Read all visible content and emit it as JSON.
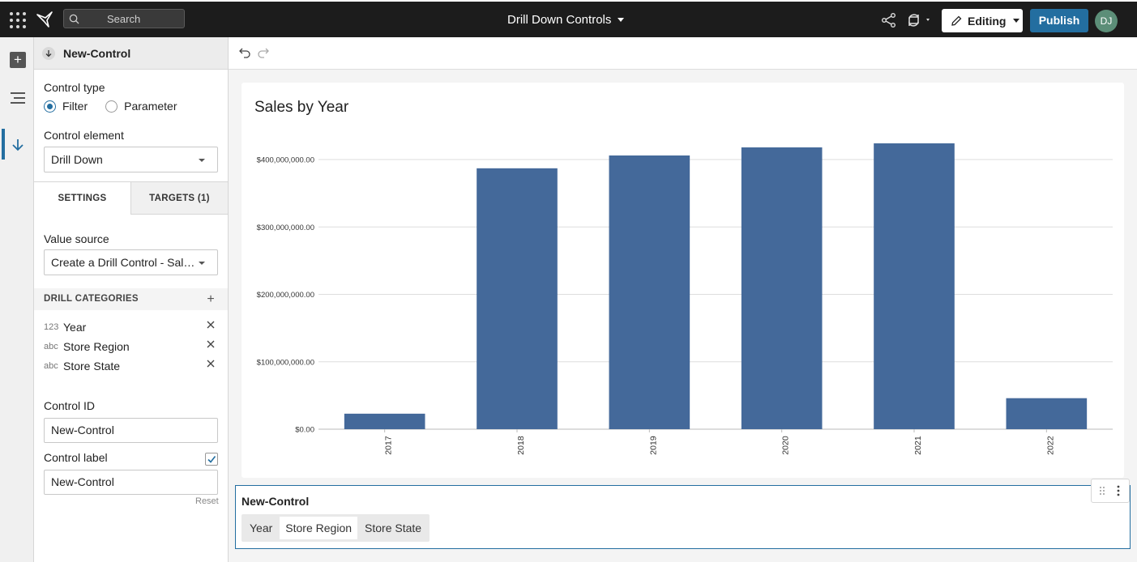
{
  "header": {
    "search_placeholder": "Search",
    "doc_title": "Drill Down Controls",
    "edit_label": "Editing",
    "publish_label": "Publish",
    "avatar_initials": "DJ"
  },
  "panel": {
    "title": "New-Control",
    "control_type_label": "Control type",
    "control_types": [
      "Filter",
      "Parameter"
    ],
    "control_type_selected": "Filter",
    "control_element_label": "Control element",
    "control_element_value": "Drill Down",
    "tabs": [
      "SETTINGS",
      "TARGETS (1)"
    ],
    "value_source_label": "Value source",
    "value_source_value": "Create a Drill Control - Sales by Year",
    "drill_categories_label": "DRILL CATEGORIES",
    "drill_categories": [
      {
        "type": "123",
        "name": "Year"
      },
      {
        "type": "abc",
        "name": "Store Region"
      },
      {
        "type": "abc",
        "name": "Store State"
      }
    ],
    "control_id_label": "Control ID",
    "control_id_value": "New-Control",
    "control_label_label": "Control label",
    "control_label_checked": true,
    "control_label_value": "New-Control",
    "reset_label": "Reset"
  },
  "control": {
    "title": "New-Control",
    "options": [
      "Year",
      "Store Region",
      "Store State"
    ],
    "selected": "Store Region"
  },
  "chart_data": {
    "type": "bar",
    "title": "Sales by Year",
    "categories": [
      "2017",
      "2018",
      "2019",
      "2020",
      "2021",
      "2022"
    ],
    "values": [
      23000000,
      387000000,
      406000000,
      418000000,
      424000000,
      46000000
    ],
    "yticks": [
      "$0.00",
      "$100,000,000.00",
      "$200,000,000.00",
      "$300,000,000.00",
      "$400,000,000.00"
    ],
    "ylim": [
      0,
      400000000
    ],
    "color": "#44699a",
    "grid": true
  }
}
